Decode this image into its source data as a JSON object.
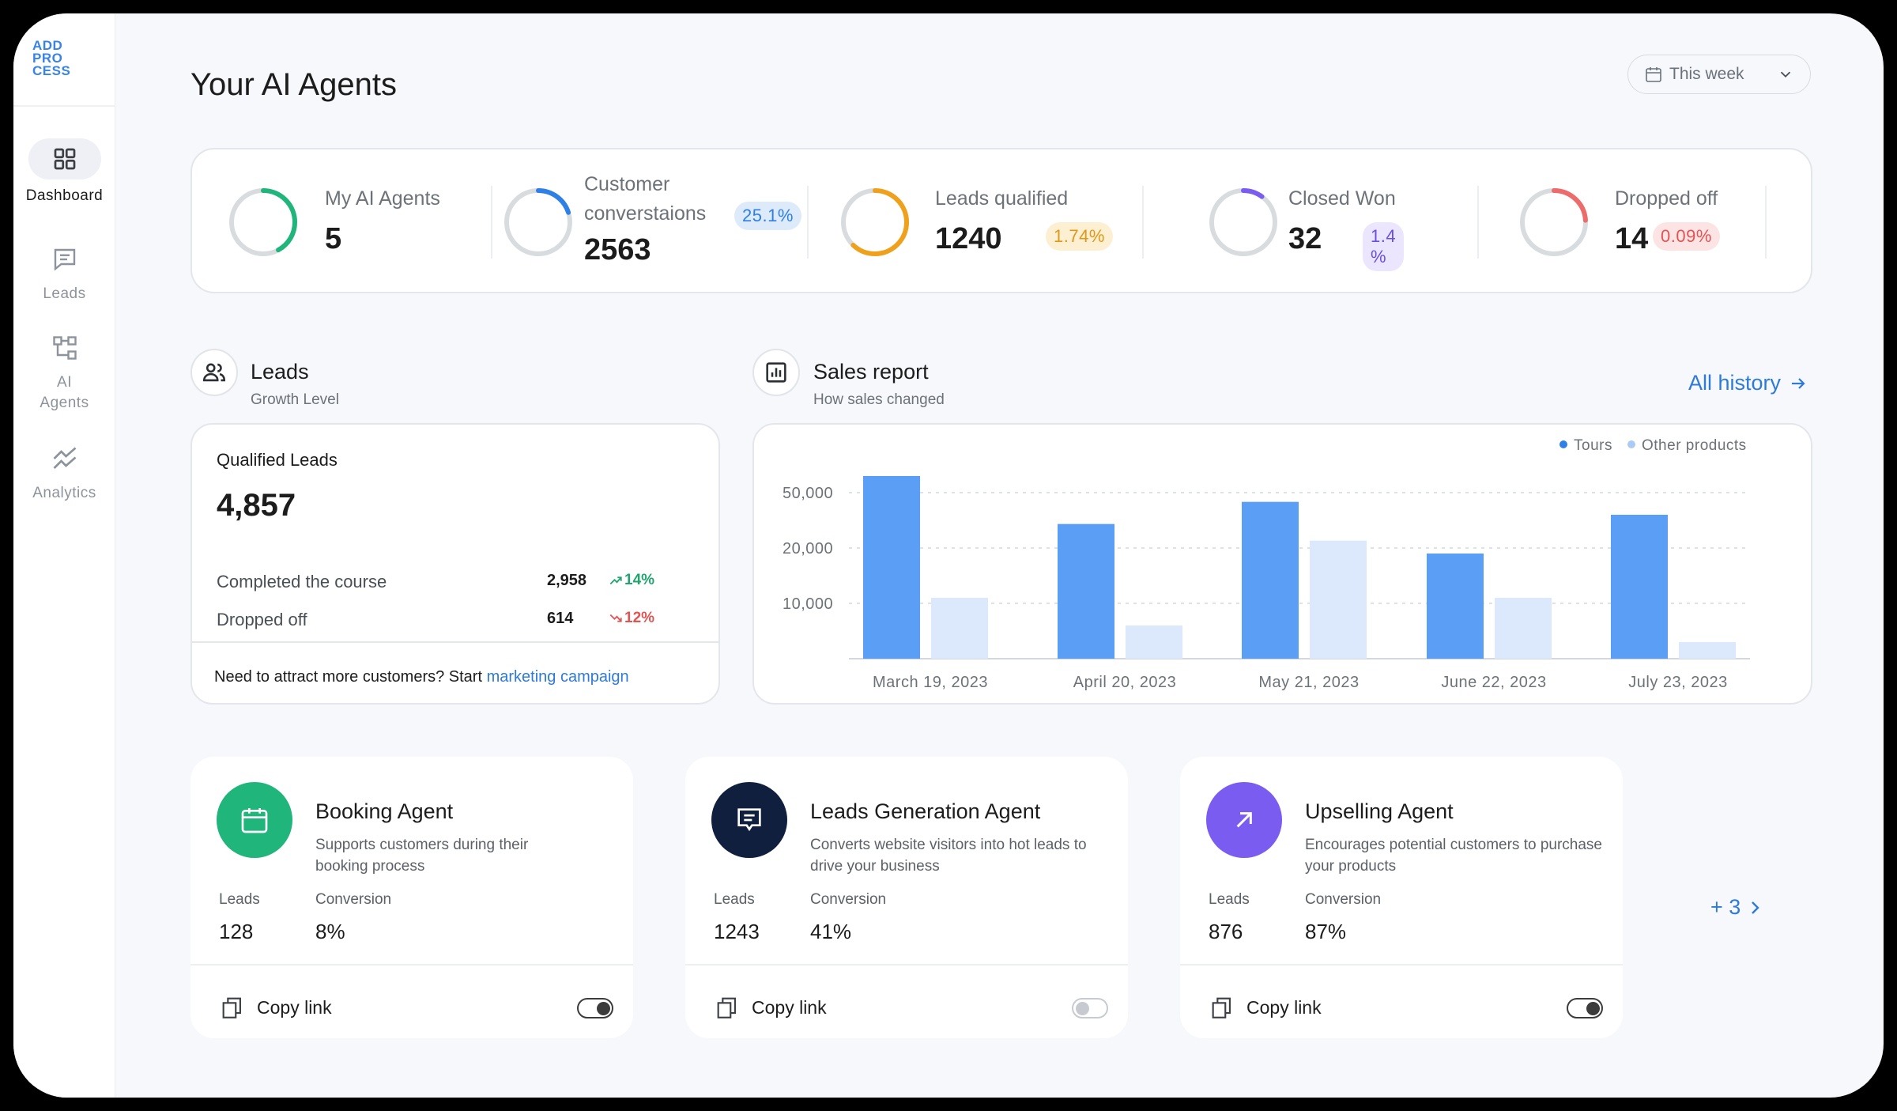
{
  "sidebar": {
    "logo_lines": [
      "ADD",
      "PRO",
      "CESS"
    ],
    "items": [
      {
        "label": "Dashboard",
        "icon": "grid-icon",
        "active": true
      },
      {
        "label": "Leads",
        "icon": "chat-icon",
        "active": false
      },
      {
        "label": "AI Agents",
        "icon": "org-chart-icon",
        "active": false
      },
      {
        "label": "Analytics",
        "icon": "trend-icon",
        "active": false
      }
    ]
  },
  "header": {
    "title": "Your AI Agents",
    "period": "This week"
  },
  "kpis": [
    {
      "label": "My AI Agents",
      "value": "5",
      "badge": "",
      "ring_color": "#1fb57b",
      "ring_fraction": 0.42
    },
    {
      "label": "Customer converstaions",
      "label_line1": "Customer",
      "label_line2": "converstaions",
      "value": "2563",
      "badge": "25.1%",
      "ring_color": "#2f80e6",
      "badge_bg": "#dceaf9",
      "badge_color": "#2f80e6",
      "ring_fraction": 0.2
    },
    {
      "label": "Leads qualified",
      "value": "1240",
      "badge": "1.74%",
      "ring_color": "#f0a11c",
      "badge_bg": "#fdf0d2",
      "badge_color": "#e0981a",
      "ring_fraction": 0.62
    },
    {
      "label": "Closed Won",
      "value": "32",
      "badge": "1.4 %",
      "ring_color": "#7b5cf0",
      "badge_bg": "#ebe6fd",
      "badge_color": "#6a4ee2",
      "ring_fraction": 0.1
    },
    {
      "label": "Dropped off",
      "value": "14",
      "badge": "0.09%",
      "ring_color": "#ee6b6b",
      "badge_bg": "#fde4e4",
      "badge_color": "#e25454",
      "ring_fraction": 0.24
    }
  ],
  "leads_section": {
    "title": "Leads",
    "subtitle": "Growth Level",
    "card_title": "Qualified Leads",
    "total": "4,857",
    "rows": [
      {
        "label": "Completed the course",
        "value": "2,958",
        "delta": "14%",
        "direction": "up",
        "color": "#1fa56d"
      },
      {
        "label": "Dropped off",
        "value": "614",
        "delta": "12%",
        "direction": "down",
        "color": "#e25454"
      }
    ],
    "footer_text": "Need to attract more customers? Start ",
    "footer_link": "marketing campaign"
  },
  "sales_section": {
    "title": "Sales report",
    "subtitle": "How sales changed",
    "all_history": "All history"
  },
  "chart_data": {
    "type": "bar",
    "categories": [
      "March 19, 2023",
      "April 20, 2023",
      "May 21, 2023",
      "June 22, 2023",
      "July 23, 2023"
    ],
    "y_ticks": [
      "50,000",
      "20,000",
      "10,000"
    ],
    "series": [
      {
        "name": "Tours",
        "color": "#5b9ef5",
        "values": [
          57000,
          33000,
          45000,
          19000,
          38000
        ]
      },
      {
        "name": "Other products",
        "color": "#dce9fc",
        "values": [
          11000,
          6000,
          24000,
          11000,
          3000
        ]
      }
    ],
    "legend": "top-right",
    "grid": true
  },
  "agents": [
    {
      "name": "Booking Agent",
      "desc": "Supports customers during their booking process",
      "leads_label": "Leads",
      "leads": "128",
      "conversion_label": "Conversion",
      "conversion": "8%",
      "copy_label": "Copy link",
      "enabled": true,
      "color": "#1fb57b",
      "icon": "calendar-icon"
    },
    {
      "name": "Leads Generation Agent",
      "desc": "Converts website visitors into hot leads to drive your business",
      "leads_label": "Leads",
      "leads": "1243",
      "conversion_label": "Conversion",
      "conversion": "41%",
      "copy_label": "Copy link",
      "enabled": false,
      "color": "#0f1f3d",
      "icon": "message-icon"
    },
    {
      "name": "Upselling Agent",
      "desc": "Encourages potential customers to purchase your products",
      "leads_label": "Leads",
      "leads": "876",
      "conversion_label": "Conversion",
      "conversion": "87%",
      "copy_label": "Copy link",
      "enabled": true,
      "color": "#7b5cf0",
      "icon": "arrow-up-right-icon"
    }
  ],
  "more_agents": "+ 3"
}
